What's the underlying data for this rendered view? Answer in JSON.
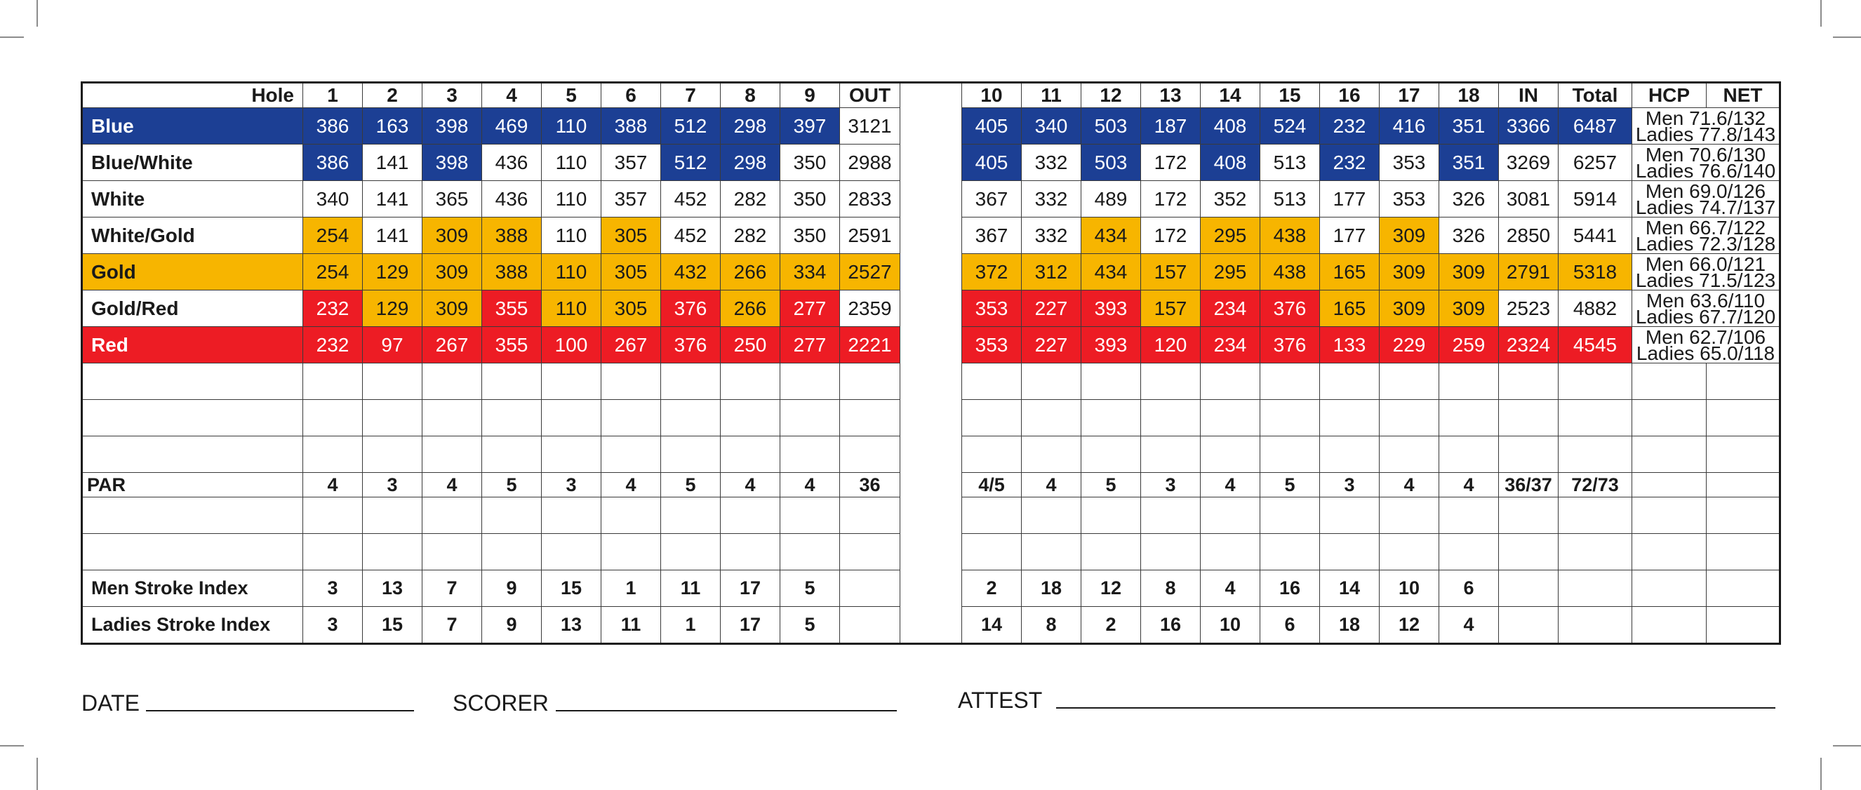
{
  "colors": {
    "blue": "#1c3f94",
    "gold": "#f7b500",
    "red": "#ed1c24",
    "white": "#ffffff",
    "text": "#1a1a1a"
  },
  "header": {
    "hole_label": "Hole",
    "front": [
      "1",
      "2",
      "3",
      "4",
      "5",
      "6",
      "7",
      "8",
      "9"
    ],
    "out": "OUT",
    "back": [
      "10",
      "11",
      "12",
      "13",
      "14",
      "15",
      "16",
      "17",
      "18"
    ],
    "in": "IN",
    "total": "Total",
    "hcp": "HCP",
    "net": "NET"
  },
  "tees": [
    {
      "name": "Blue",
      "name_color": "blue",
      "front": [
        "386",
        "163",
        "398",
        "469",
        "110",
        "388",
        "512",
        "298",
        "397"
      ],
      "front_colors": [
        "blue",
        "blue",
        "blue",
        "blue",
        "blue",
        "blue",
        "blue",
        "blue",
        "blue"
      ],
      "out": "3121",
      "out_color": "none",
      "back": [
        "405",
        "340",
        "503",
        "187",
        "408",
        "524",
        "232",
        "416",
        "351"
      ],
      "back_colors": [
        "blue",
        "blue",
        "blue",
        "blue",
        "blue",
        "blue",
        "blue",
        "blue",
        "blue"
      ],
      "in": "3366",
      "in_color": "blue",
      "total": "6487",
      "total_color": "blue",
      "rating_men": "Men 71.6/132",
      "rating_ladies": "Ladies 77.8/143"
    },
    {
      "name": "Blue/White",
      "name_color": "none",
      "front": [
        "386",
        "141",
        "398",
        "436",
        "110",
        "357",
        "512",
        "298",
        "350"
      ],
      "front_colors": [
        "blue",
        "none",
        "blue",
        "none",
        "none",
        "none",
        "blue",
        "blue",
        "none"
      ],
      "out": "2988",
      "out_color": "none",
      "back": [
        "405",
        "332",
        "503",
        "172",
        "408",
        "513",
        "232",
        "353",
        "351"
      ],
      "back_colors": [
        "blue",
        "none",
        "blue",
        "none",
        "blue",
        "none",
        "blue",
        "none",
        "blue"
      ],
      "in": "3269",
      "in_color": "none",
      "total": "6257",
      "total_color": "none",
      "rating_men": "Men 70.6/130",
      "rating_ladies": "Ladies 76.6/140"
    },
    {
      "name": "White",
      "name_color": "none",
      "front": [
        "340",
        "141",
        "365",
        "436",
        "110",
        "357",
        "452",
        "282",
        "350"
      ],
      "front_colors": [
        "none",
        "none",
        "none",
        "none",
        "none",
        "none",
        "none",
        "none",
        "none"
      ],
      "out": "2833",
      "out_color": "none",
      "back": [
        "367",
        "332",
        "489",
        "172",
        "352",
        "513",
        "177",
        "353",
        "326"
      ],
      "back_colors": [
        "none",
        "none",
        "none",
        "none",
        "none",
        "none",
        "none",
        "none",
        "none"
      ],
      "in": "3081",
      "in_color": "none",
      "total": "5914",
      "total_color": "none",
      "rating_men": "Men 69.0/126",
      "rating_ladies": "Ladies 74.7/137"
    },
    {
      "name": "White/Gold",
      "name_color": "none",
      "front": [
        "254",
        "141",
        "309",
        "388",
        "110",
        "305",
        "452",
        "282",
        "350"
      ],
      "front_colors": [
        "gold",
        "none",
        "gold",
        "gold",
        "none",
        "gold",
        "none",
        "none",
        "none"
      ],
      "out": "2591",
      "out_color": "none",
      "back": [
        "367",
        "332",
        "434",
        "172",
        "295",
        "438",
        "177",
        "309",
        "326"
      ],
      "back_colors": [
        "none",
        "none",
        "gold",
        "none",
        "gold",
        "gold",
        "none",
        "gold",
        "none"
      ],
      "in": "2850",
      "in_color": "none",
      "total": "5441",
      "total_color": "none",
      "rating_men": "Men 66.7/122",
      "rating_ladies": "Ladies 72.3/128"
    },
    {
      "name": "Gold",
      "name_color": "gold",
      "front": [
        "254",
        "129",
        "309",
        "388",
        "110",
        "305",
        "432",
        "266",
        "334"
      ],
      "front_colors": [
        "gold",
        "gold",
        "gold",
        "gold",
        "gold",
        "gold",
        "gold",
        "gold",
        "gold"
      ],
      "out": "2527",
      "out_color": "gold",
      "back": [
        "372",
        "312",
        "434",
        "157",
        "295",
        "438",
        "165",
        "309",
        "309"
      ],
      "back_colors": [
        "gold",
        "gold",
        "gold",
        "gold",
        "gold",
        "gold",
        "gold",
        "gold",
        "gold"
      ],
      "in": "2791",
      "in_color": "gold",
      "total": "5318",
      "total_color": "gold",
      "rating_men": "Men 66.0/121",
      "rating_ladies": "Ladies 71.5/123"
    },
    {
      "name": "Gold/Red",
      "name_color": "none",
      "front": [
        "232",
        "129",
        "309",
        "355",
        "110",
        "305",
        "376",
        "266",
        "277"
      ],
      "front_colors": [
        "red",
        "gold",
        "gold",
        "red",
        "gold",
        "gold",
        "red",
        "gold",
        "red"
      ],
      "out": "2359",
      "out_color": "none",
      "back": [
        "353",
        "227",
        "393",
        "157",
        "234",
        "376",
        "165",
        "309",
        "309"
      ],
      "back_colors": [
        "red",
        "red",
        "red",
        "gold",
        "red",
        "red",
        "gold",
        "gold",
        "gold"
      ],
      "in": "2523",
      "in_color": "none",
      "total": "4882",
      "total_color": "none",
      "rating_men": "Men 63.6/110",
      "rating_ladies": "Ladies 67.7/120"
    },
    {
      "name": "Red",
      "name_color": "red",
      "front": [
        "232",
        "97",
        "267",
        "355",
        "100",
        "267",
        "376",
        "250",
        "277"
      ],
      "front_colors": [
        "red",
        "red",
        "red",
        "red",
        "red",
        "red",
        "red",
        "red",
        "red"
      ],
      "out": "2221",
      "out_color": "red",
      "back": [
        "353",
        "227",
        "393",
        "120",
        "234",
        "376",
        "133",
        "229",
        "259"
      ],
      "back_colors": [
        "red",
        "red",
        "red",
        "red",
        "red",
        "red",
        "red",
        "red",
        "red"
      ],
      "in": "2324",
      "in_color": "red",
      "total": "4545",
      "total_color": "red",
      "rating_men": "Men 62.7/106",
      "rating_ladies": "Ladies 65.0/118"
    }
  ],
  "par": {
    "label": "PAR",
    "front": [
      "4",
      "3",
      "4",
      "5",
      "3",
      "4",
      "5",
      "4",
      "4"
    ],
    "out": "36",
    "back": [
      "4/5",
      "4",
      "5",
      "3",
      "4",
      "5",
      "3",
      "4",
      "4"
    ],
    "in": "36/37",
    "total": "72/73"
  },
  "men_stroke_index": {
    "label": "Men Stroke Index",
    "front": [
      "3",
      "13",
      "7",
      "9",
      "15",
      "1",
      "11",
      "17",
      "5"
    ],
    "back": [
      "2",
      "18",
      "12",
      "8",
      "4",
      "16",
      "14",
      "10",
      "6"
    ]
  },
  "ladies_stroke_index": {
    "label": "Ladies Stroke Index",
    "front": [
      "3",
      "15",
      "7",
      "9",
      "13",
      "11",
      "1",
      "17",
      "5"
    ],
    "back": [
      "14",
      "8",
      "2",
      "16",
      "10",
      "6",
      "18",
      "12",
      "4"
    ]
  },
  "signatures": {
    "date": "DATE",
    "scorer": "SCORER",
    "attest": "ATTEST"
  }
}
